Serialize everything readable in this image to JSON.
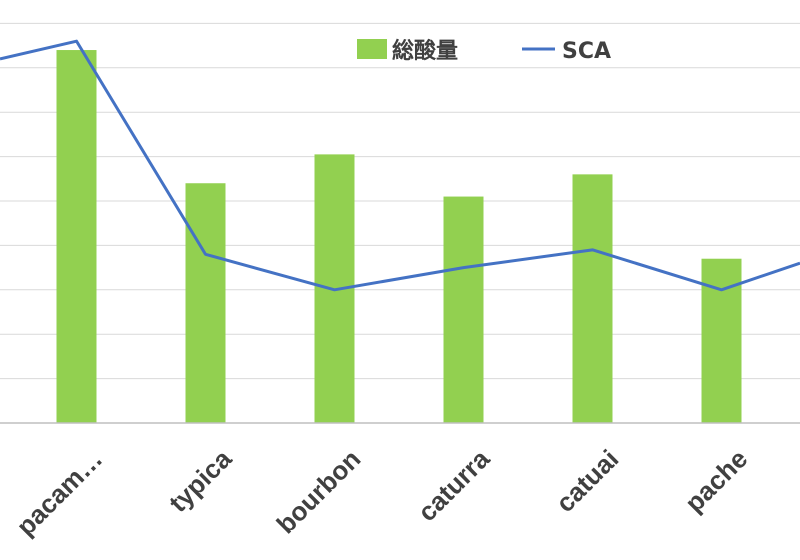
{
  "chart_data": {
    "type": "bar",
    "title": "",
    "xlabel": "",
    "ylabel": "",
    "categories": [
      "pacam…",
      "typica",
      "bourbon",
      "caturra",
      "catuai",
      "pache"
    ],
    "ylim": [
      0,
      9
    ],
    "grid": true,
    "legend_position": "top-right",
    "series": [
      {
        "name": "総酸量",
        "type": "bar",
        "color": "#92D050",
        "values": [
          8.4,
          5.4,
          6.05,
          5.1,
          5.6,
          3.7
        ]
      },
      {
        "name": "SCA",
        "type": "line",
        "color": "#4472C4",
        "values": [
          8.6,
          3.8,
          3.0,
          3.5,
          3.9,
          3.0
        ],
        "edge_left": 8.2,
        "edge_right": 3.6
      }
    ]
  }
}
